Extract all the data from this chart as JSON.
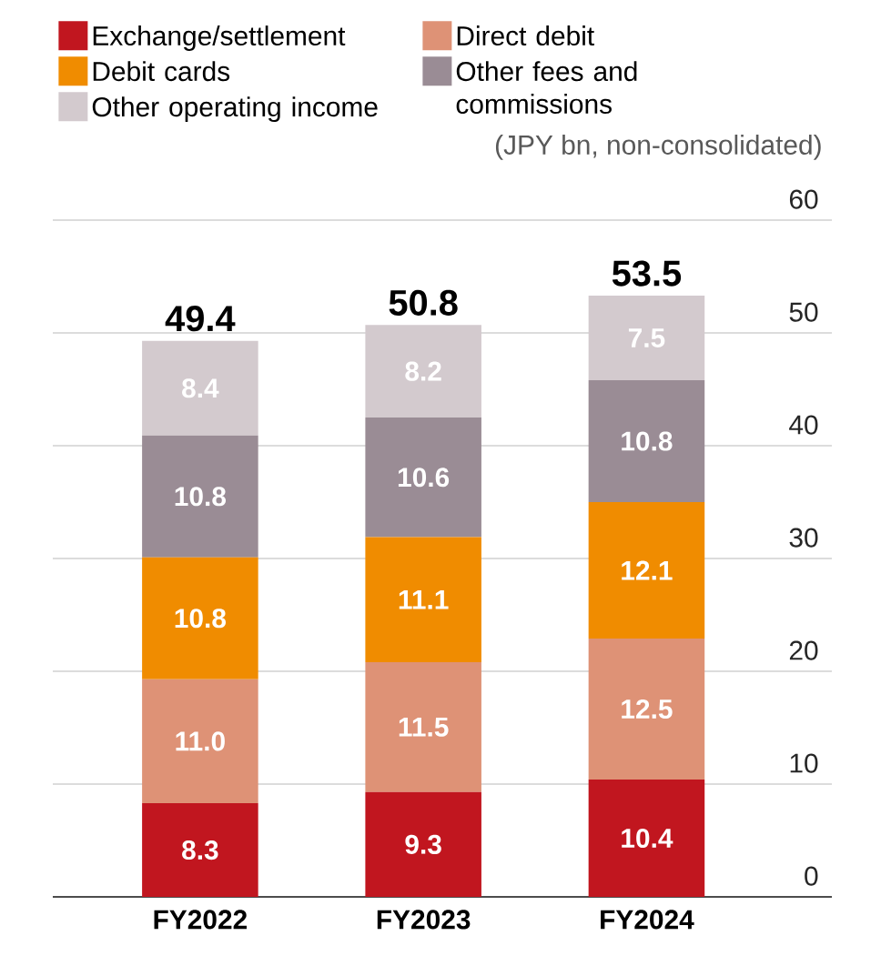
{
  "chart_data": {
    "type": "bar",
    "stacked": true,
    "ylabel": "(JPY bn, non-consolidated)",
    "categories": [
      "FY2022",
      "FY2023",
      "FY2024"
    ],
    "series": [
      {
        "name": "Exchange/settlement",
        "color": "#c1161f",
        "values": [
          8.3,
          9.3,
          10.4
        ],
        "value_labels": [
          "8.3",
          "9.3",
          "10.4"
        ]
      },
      {
        "name": "Direct debit",
        "color": "#de9276",
        "values": [
          11.0,
          11.5,
          12.5
        ],
        "value_labels": [
          "11.0",
          "11.5",
          "12.5"
        ]
      },
      {
        "name": "Debit cards",
        "color": "#f08c00",
        "values": [
          10.8,
          11.1,
          12.1
        ],
        "value_labels": [
          "10.8",
          "11.1",
          "12.1"
        ]
      },
      {
        "name": "Other fees and commissions",
        "color": "#9a8c95",
        "values": [
          10.8,
          10.6,
          10.8
        ],
        "value_labels": [
          "10.8",
          "10.6",
          "10.8"
        ]
      },
      {
        "name": "Other operating income",
        "color": "#d3cace",
        "values": [
          8.4,
          8.2,
          7.5
        ],
        "value_labels": [
          "8.4",
          "8.2",
          "7.5"
        ]
      }
    ],
    "totals": [
      "49.4",
      "50.8",
      "53.5"
    ],
    "ylim": [
      0,
      60
    ],
    "yticks": [
      0,
      10,
      20,
      30,
      40,
      50,
      60
    ],
    "grid": "y",
    "legend": "top left"
  }
}
